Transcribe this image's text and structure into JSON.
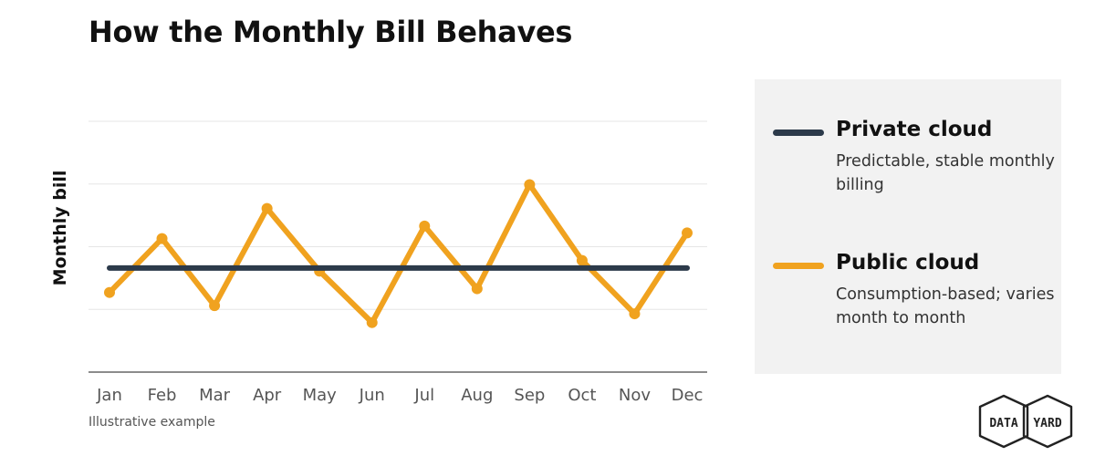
{
  "title": "How the Monthly Bill Behaves",
  "note": "Illustrative example",
  "brand": "DATA YARD",
  "colors": {
    "private": "#2c3a4a",
    "public": "#f0a21f",
    "grid": "#e6e6e6",
    "axis": "#666666",
    "legend_bg": "#f2f2f2"
  },
  "legend": [
    {
      "name": "Private cloud",
      "desc": "Predictable, stable monthly billing"
    },
    {
      "name": "Public cloud",
      "desc": "Consumption-based; varies month to month"
    }
  ],
  "chart_data": {
    "type": "line",
    "title": "How the Monthly Bill Behaves",
    "xlabel": "",
    "ylabel": "Monthly bill",
    "categories": [
      "Jan",
      "Feb",
      "Mar",
      "Apr",
      "May",
      "Jun",
      "Jul",
      "Aug",
      "Sep",
      "Oct",
      "Nov",
      "Dec"
    ],
    "ylim": [
      0,
      4
    ],
    "grid": true,
    "legend_position": "right",
    "series": [
      {
        "name": "Private cloud",
        "values": [
          1.66,
          1.66,
          1.66,
          1.66,
          1.66,
          1.66,
          1.66,
          1.66,
          1.66,
          1.66,
          1.66,
          1.66
        ]
      },
      {
        "name": "Public cloud",
        "values": [
          1.27,
          2.13,
          1.06,
          2.61,
          1.61,
          0.79,
          2.33,
          1.33,
          2.99,
          1.78,
          0.93,
          2.22
        ]
      }
    ]
  }
}
